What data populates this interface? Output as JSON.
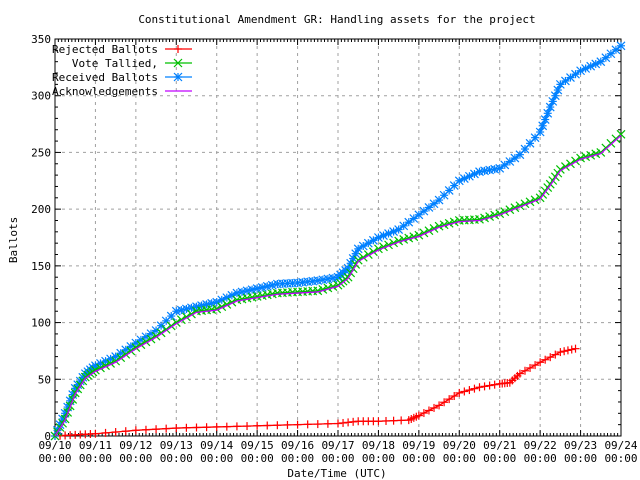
{
  "chart_data": {
    "type": "line",
    "title": "Constitutional Amendment GR: Handling assets for the project",
    "xlabel": "Date/Time (UTC)",
    "ylabel": "Ballots",
    "xlim": [
      "09/10 00:00",
      "09/24 00:00"
    ],
    "ylim": [
      0,
      350
    ],
    "yticks": [
      0,
      50,
      100,
      150,
      200,
      250,
      300,
      350
    ],
    "xticks": [
      [
        "09/10",
        "00:00"
      ],
      [
        "09/11",
        "00:00"
      ],
      [
        "09/12",
        "00:00"
      ],
      [
        "09/13",
        "00:00"
      ],
      [
        "09/14",
        "00:00"
      ],
      [
        "09/15",
        "00:00"
      ],
      [
        "09/16",
        "00:00"
      ],
      [
        "09/17",
        "00:00"
      ],
      [
        "09/18",
        "00:00"
      ],
      [
        "09/19",
        "00:00"
      ],
      [
        "09/20",
        "00:00"
      ],
      [
        "09/21",
        "00:00"
      ],
      [
        "09/22",
        "00:00"
      ],
      [
        "09/23",
        "00:00"
      ],
      [
        "09/24",
        "00:00"
      ]
    ],
    "grid": true,
    "legend_position": "top-left",
    "series": [
      {
        "name": "Rejected Ballots",
        "color": "#ff0000",
        "marker": "plus",
        "points": [
          [
            "09/10 00:00",
            0
          ],
          [
            "09/10 12:00",
            1
          ],
          [
            "09/11 00:00",
            2
          ],
          [
            "09/12 00:00",
            5
          ],
          [
            "09/13 00:00",
            7
          ],
          [
            "09/14 00:00",
            8
          ],
          [
            "09/15 00:00",
            9
          ],
          [
            "09/16 00:00",
            10
          ],
          [
            "09/17 00:00",
            11
          ],
          [
            "09/17 12:00",
            13
          ],
          [
            "09/18 00:00",
            13
          ],
          [
            "09/18 18:00",
            14
          ],
          [
            "09/19 00:00",
            18
          ],
          [
            "09/19 12:00",
            27
          ],
          [
            "09/20 00:00",
            38
          ],
          [
            "09/20 12:00",
            43
          ],
          [
            "09/21 00:00",
            46
          ],
          [
            "09/21 06:00",
            47
          ],
          [
            "09/21 12:00",
            55
          ],
          [
            "09/22 00:00",
            65
          ],
          [
            "09/22 12:00",
            74
          ],
          [
            "09/22 21:00",
            77
          ]
        ]
      },
      {
        "name": "Vote Tallied,",
        "color": "#00c000",
        "marker": "cross",
        "points": [
          [
            "09/10 00:00",
            0
          ],
          [
            "09/10 06:00",
            15
          ],
          [
            "09/10 12:00",
            38
          ],
          [
            "09/10 18:00",
            52
          ],
          [
            "09/11 00:00",
            58
          ],
          [
            "09/11 12:00",
            66
          ],
          [
            "09/12 00:00",
            78
          ],
          [
            "09/12 12:00",
            88
          ],
          [
            "09/13 00:00",
            100
          ],
          [
            "09/13 12:00",
            110
          ],
          [
            "09/14 00:00",
            112
          ],
          [
            "09/14 12:00",
            120
          ],
          [
            "09/15 00:00",
            123
          ],
          [
            "09/15 12:00",
            126
          ],
          [
            "09/16 00:00",
            127
          ],
          [
            "09/16 12:00",
            128
          ],
          [
            "09/17 00:00",
            133
          ],
          [
            "09/17 06:00",
            140
          ],
          [
            "09/17 12:00",
            155
          ],
          [
            "09/18 00:00",
            165
          ],
          [
            "09/18 12:00",
            172
          ],
          [
            "09/19 00:00",
            177
          ],
          [
            "09/19 12:00",
            185
          ],
          [
            "09/20 00:00",
            190
          ],
          [
            "09/20 12:00",
            191
          ],
          [
            "09/21 00:00",
            196
          ],
          [
            "09/21 12:00",
            203
          ],
          [
            "09/22 00:00",
            210
          ],
          [
            "09/22 06:00",
            222
          ],
          [
            "09/22 12:00",
            235
          ],
          [
            "09/23 00:00",
            245
          ],
          [
            "09/23 12:00",
            250
          ],
          [
            "09/24 00:00",
            266
          ]
        ]
      },
      {
        "name": "Received Ballots",
        "color": "#0080ff",
        "marker": "star",
        "points": [
          [
            "09/10 00:00",
            0
          ],
          [
            "09/10 06:00",
            20
          ],
          [
            "09/10 12:00",
            42
          ],
          [
            "09/10 18:00",
            55
          ],
          [
            "09/11 00:00",
            62
          ],
          [
            "09/11 12:00",
            70
          ],
          [
            "09/12 00:00",
            82
          ],
          [
            "09/12 12:00",
            93
          ],
          [
            "09/13 00:00",
            110
          ],
          [
            "09/13 12:00",
            114
          ],
          [
            "09/14 00:00",
            118
          ],
          [
            "09/14 12:00",
            126
          ],
          [
            "09/15 00:00",
            130
          ],
          [
            "09/15 12:00",
            134
          ],
          [
            "09/16 00:00",
            135
          ],
          [
            "09/16 12:00",
            137
          ],
          [
            "09/17 00:00",
            140
          ],
          [
            "09/17 06:00",
            148
          ],
          [
            "09/17 12:00",
            165
          ],
          [
            "09/18 00:00",
            175
          ],
          [
            "09/18 12:00",
            182
          ],
          [
            "09/19 00:00",
            195
          ],
          [
            "09/19 12:00",
            208
          ],
          [
            "09/20 00:00",
            225
          ],
          [
            "09/20 12:00",
            233
          ],
          [
            "09/21 00:00",
            236
          ],
          [
            "09/21 12:00",
            248
          ],
          [
            "09/22 00:00",
            268
          ],
          [
            "09/22 06:00",
            290
          ],
          [
            "09/22 12:00",
            310
          ],
          [
            "09/23 00:00",
            322
          ],
          [
            "09/23 12:00",
            330
          ],
          [
            "09/24 00:00",
            344
          ]
        ]
      },
      {
        "name": "Acknowledgements",
        "color": "#c000ff",
        "marker": "none",
        "points": [
          [
            "09/10 00:00",
            0
          ],
          [
            "09/10 06:00",
            14
          ],
          [
            "09/10 12:00",
            37
          ],
          [
            "09/10 18:00",
            51
          ],
          [
            "09/11 00:00",
            57
          ],
          [
            "09/11 12:00",
            65
          ],
          [
            "09/12 00:00",
            77
          ],
          [
            "09/12 12:00",
            87
          ],
          [
            "09/13 00:00",
            99
          ],
          [
            "09/13 12:00",
            109
          ],
          [
            "09/14 00:00",
            111
          ],
          [
            "09/14 12:00",
            119
          ],
          [
            "09/15 00:00",
            122
          ],
          [
            "09/15 12:00",
            125
          ],
          [
            "09/16 00:00",
            126
          ],
          [
            "09/16 12:00",
            127
          ],
          [
            "09/17 00:00",
            132
          ],
          [
            "09/17 06:00",
            139
          ],
          [
            "09/17 12:00",
            154
          ],
          [
            "09/18 00:00",
            164
          ],
          [
            "09/18 12:00",
            171
          ],
          [
            "09/19 00:00",
            176
          ],
          [
            "09/19 12:00",
            184
          ],
          [
            "09/20 00:00",
            189
          ],
          [
            "09/20 12:00",
            190
          ],
          [
            "09/21 00:00",
            195
          ],
          [
            "09/21 12:00",
            202
          ],
          [
            "09/22 00:00",
            209
          ],
          [
            "09/22 06:00",
            221
          ],
          [
            "09/22 12:00",
            234
          ],
          [
            "09/23 00:00",
            244
          ],
          [
            "09/23 12:00",
            249
          ],
          [
            "09/24 00:00",
            265
          ]
        ]
      }
    ]
  }
}
